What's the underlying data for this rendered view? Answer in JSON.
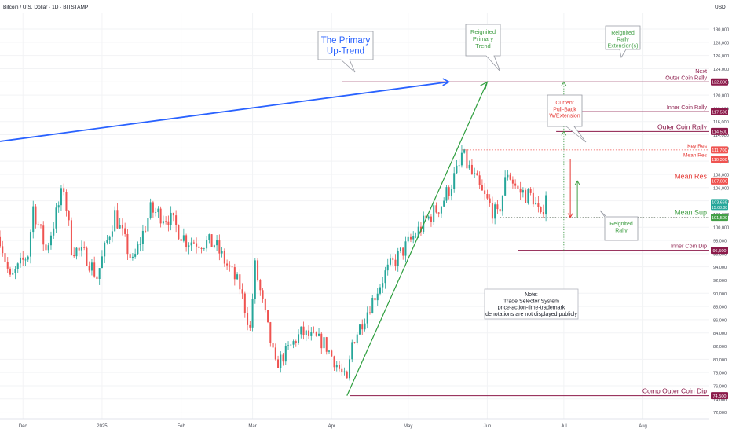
{
  "header": {
    "symbol_line": "Bitcoin / U.S. Dollar · 1D · BITSTAMP",
    "currency": "USD"
  },
  "colors": {
    "up": "#26a69a",
    "down": "#ef5350",
    "trend_blue": "#2962ff",
    "trend_green": "#2e9e3e",
    "maroon": "#8b1a4a",
    "red_label": "#e53935",
    "green_label": "#43a047",
    "grid": "#f2f3f5",
    "axis_text": "#131722"
  },
  "chart_data": {
    "type": "candlestick",
    "title": "Bitcoin / U.S. Dollar · 1D · BITSTAMP",
    "y_unit": "USD",
    "ylim": [
      71000,
      132500
    ],
    "y_ticks": [
      72000,
      74000,
      76000,
      78000,
      80000,
      82000,
      84000,
      86000,
      88000,
      90000,
      92000,
      94000,
      96000,
      98000,
      100000,
      102000,
      104000,
      106000,
      108000,
      110000,
      112000,
      114000,
      116000,
      118000,
      120000,
      122000,
      124000,
      126000,
      128000,
      130000
    ],
    "y_tick_labels": [
      "72,000",
      "74,000",
      "76,000",
      "78,000",
      "80,000",
      "82,000",
      "84,000",
      "86,000",
      "88,000",
      "90,000",
      "92,000",
      "94,000",
      "96,000",
      "98,000",
      "100,000",
      "102,000",
      "104,000",
      "106,000",
      "108,000",
      "110,000",
      "112,000",
      "114,000",
      "116,000",
      "118,000",
      "120,000",
      "122,000",
      "124,000",
      "126,000",
      "128,000",
      "130,000"
    ],
    "x_start": "2024-11-22",
    "x_end": "2025-08-27",
    "x_ticks": [
      {
        "date": "2024-12-01",
        "label": "Dec"
      },
      {
        "date": "2025-01-01",
        "label": "2025"
      },
      {
        "date": "2025-02-01",
        "label": "Feb"
      },
      {
        "date": "2025-03-01",
        "label": "Mar"
      },
      {
        "date": "2025-04-01",
        "label": "Apr"
      },
      {
        "date": "2025-05-01",
        "label": "May"
      },
      {
        "date": "2025-06-01",
        "label": "Jun"
      },
      {
        "date": "2025-07-01",
        "label": "Jul"
      },
      {
        "date": "2025-08-01",
        "label": "Aug"
      }
    ],
    "candles_start": "2024-11-22",
    "close_anchors": [
      {
        "date": "2024-11-22",
        "close": 98500
      },
      {
        "date": "2024-11-26",
        "close": 92000
      },
      {
        "date": "2024-12-03",
        "close": 96000
      },
      {
        "date": "2024-12-05",
        "close": 103000
      },
      {
        "date": "2024-12-10",
        "close": 96500
      },
      {
        "date": "2024-12-17",
        "close": 106000
      },
      {
        "date": "2024-12-20",
        "close": 97000
      },
      {
        "date": "2024-12-26",
        "close": 95500
      },
      {
        "date": "2024-12-30",
        "close": 92500
      },
      {
        "date": "2025-01-06",
        "close": 102000
      },
      {
        "date": "2025-01-13",
        "close": 94500
      },
      {
        "date": "2025-01-20",
        "close": 102500
      },
      {
        "date": "2025-01-27",
        "close": 101500
      },
      {
        "date": "2025-02-03",
        "close": 98000
      },
      {
        "date": "2025-02-14",
        "close": 97500
      },
      {
        "date": "2025-02-24",
        "close": 91000
      },
      {
        "date": "2025-02-28",
        "close": 84500
      },
      {
        "date": "2025-03-02",
        "close": 94000
      },
      {
        "date": "2025-03-10",
        "close": 79000
      },
      {
        "date": "2025-03-20",
        "close": 84000
      },
      {
        "date": "2025-03-29",
        "close": 82500
      },
      {
        "date": "2025-04-07",
        "close": 76500
      },
      {
        "date": "2025-04-09",
        "close": 82500
      },
      {
        "date": "2025-04-22",
        "close": 93000
      },
      {
        "date": "2025-05-08",
        "close": 101000
      },
      {
        "date": "2025-05-14",
        "close": 103500
      },
      {
        "date": "2025-05-21",
        "close": 109000
      },
      {
        "date": "2025-05-22",
        "close": 111000
      },
      {
        "date": "2025-05-30",
        "close": 105000
      },
      {
        "date": "2025-06-05",
        "close": 101500
      },
      {
        "date": "2025-06-09",
        "close": 108500
      },
      {
        "date": "2025-06-13",
        "close": 105500
      },
      {
        "date": "2025-06-19",
        "close": 104500
      },
      {
        "date": "2025-06-22",
        "close": 101000
      },
      {
        "date": "2025-06-24",
        "close": 105500
      },
      {
        "date": "2025-06-25",
        "close": 103500
      }
    ],
    "levels": [
      {
        "label": "Next\nOuter Coin Rally",
        "value": 122000,
        "tag": "122,000",
        "style": "maroon"
      },
      {
        "label": "Inner Coin Rally",
        "value": 117500,
        "tag": "117,500",
        "style": "maroon"
      },
      {
        "label": "Outer Coin Rally",
        "value": 114500,
        "tag": "114,500",
        "style": "maroon"
      },
      {
        "label": "Key Res",
        "value": 111700,
        "tag": "111,700",
        "style": "red-dotted"
      },
      {
        "label": "Mean Res",
        "value": 110300,
        "tag": "110,300",
        "style": "red-dotted"
      },
      {
        "label": "Mean Res",
        "value": 107000,
        "tag": "107,000",
        "style": "red-dotted"
      },
      {
        "label": "Mean Sup",
        "value": 101500,
        "tag": "101,500",
        "style": "green-dotted"
      },
      {
        "label": "Inner Coin Dip",
        "value": 96500,
        "tag": "96,500",
        "style": "maroon"
      },
      {
        "label": "Comp Outer Coin Dip",
        "value": 74500,
        "tag": "74,500",
        "style": "maroon"
      }
    ],
    "current_price": {
      "value": 103669,
      "tag": "103,669",
      "countdown": "15:08:08"
    },
    "annotations": {
      "primary_trend": "The Primary\nUp-Trend",
      "reignited_primary": "Reignited\nPrimary\nTrend",
      "reignited_extension": "Reignited\nRally\nExtension(s)",
      "pullback": "Current\nPull-Back\nW/Extension",
      "reignited_rally": "Reignited\nRally",
      "note": "Note:\nTrade Selector System\nprice-action-time-trademark\ndenotations are not displayed publicly"
    }
  }
}
